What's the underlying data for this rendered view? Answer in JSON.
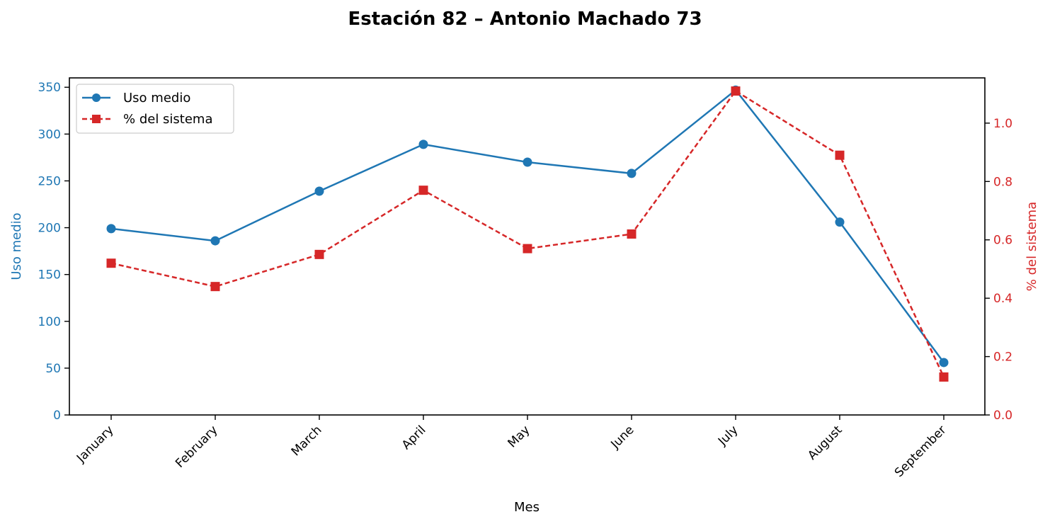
{
  "chart_data": {
    "type": "line",
    "title": "Estación 82 – Antonio Machado 73",
    "xlabel": "Mes",
    "ylabel_left": "Uso medio",
    "ylabel_right": "% del sistema",
    "categories": [
      "January",
      "February",
      "March",
      "April",
      "May",
      "June",
      "July",
      "August",
      "September"
    ],
    "ylim_left": [
      0,
      360
    ],
    "yticks_left": [
      0,
      50,
      100,
      150,
      200,
      250,
      300,
      350
    ],
    "ylim_right": [
      0,
      1.155
    ],
    "yticks_right": [
      "0.0",
      "0.2",
      "0.4",
      "0.6",
      "0.8",
      "1.0"
    ],
    "legend_position": "top-left",
    "series": [
      {
        "name": "Uso medio",
        "axis": "left",
        "color": "#1f77b4",
        "line_style": "solid",
        "marker": "circle",
        "values": [
          199,
          186,
          239,
          289,
          270,
          258,
          347,
          206,
          56
        ]
      },
      {
        "name": "% del sistema",
        "axis": "right",
        "color": "#d62728",
        "line_style": "dashed",
        "marker": "square",
        "values": [
          0.52,
          0.44,
          0.55,
          0.77,
          0.57,
          0.62,
          1.11,
          0.89,
          0.13
        ]
      }
    ]
  }
}
